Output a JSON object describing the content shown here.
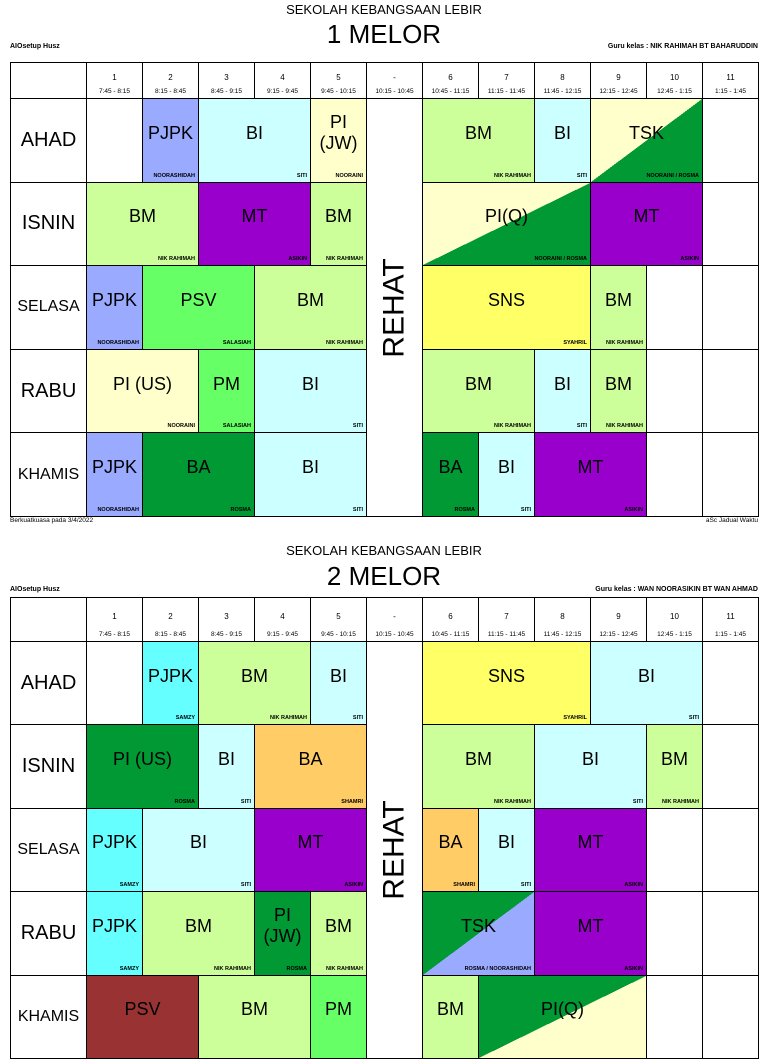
{
  "timetables": [
    {
      "school": "SEKOLAH KEBANGSAAN LEBIR",
      "class": "1 MELOR",
      "setup": "AIOsetup Husz",
      "teacher": "Guru kelas : NIK RAHIMAH BT BAHARUDDIN",
      "periods": [
        {
          "num": "1",
          "time": "7:45 - 8:15"
        },
        {
          "num": "2",
          "time": "8:15 - 8:45"
        },
        {
          "num": "3",
          "time": "8:45 - 9:15"
        },
        {
          "num": "4",
          "time": "9:15 - 9:45"
        },
        {
          "num": "5",
          "time": "9:45 - 10:15"
        },
        {
          "num": "-",
          "time": "10:15 - 10:45"
        },
        {
          "num": "6",
          "time": "10:45 - 11:15"
        },
        {
          "num": "7",
          "time": "11:15 - 11:45"
        },
        {
          "num": "8",
          "time": "11:45 - 12:15"
        },
        {
          "num": "9",
          "time": "12:15 - 12:45"
        },
        {
          "num": "10",
          "time": "12:45 - 1:15"
        },
        {
          "num": "11",
          "time": "1:15 - 1:45"
        }
      ],
      "rehat": "REHAT",
      "days": [
        {
          "name": "AHAD",
          "cells": [
            {
              "subject": "PJPK",
              "teacher": "NOORASHIDAH",
              "col": 1,
              "span": 1,
              "color": "#99aaff"
            },
            {
              "subject": "BI",
              "teacher": "SITI",
              "col": 2,
              "span": 2,
              "color": "#ccffff"
            },
            {
              "subject": "PI (JW)",
              "teacher": "NOORAINI",
              "col": 4,
              "span": 1,
              "color": "#ffffcc"
            },
            {
              "subject": "BM",
              "teacher": "NIK RAHIMAH",
              "col": 6,
              "span": 2,
              "color": "#ccff99"
            },
            {
              "subject": "BI",
              "teacher": "SITI",
              "col": 8,
              "span": 1,
              "color": "#ccffff"
            },
            {
              "subject": "TSK",
              "teacher": "NOORAINI / ROSMA",
              "col": 9,
              "span": 2,
              "color": "#ffffcc",
              "color2": "#009933"
            }
          ]
        },
        {
          "name": "ISNIN",
          "cells": [
            {
              "subject": "BM",
              "teacher": "NIK RAHIMAH",
              "col": 0,
              "span": 2,
              "color": "#ccff99"
            },
            {
              "subject": "MT",
              "teacher": "ASIKIN",
              "col": 2,
              "span": 2,
              "color": "#9900cc"
            },
            {
              "subject": "BM",
              "teacher": "NIK RAHIMAH",
              "col": 4,
              "span": 1,
              "color": "#ccff99"
            },
            {
              "subject": "PI(Q)",
              "teacher": "NOORAINI / ROSMA",
              "col": 6,
              "span": 3,
              "color": "#ffffcc",
              "color2": "#009933"
            },
            {
              "subject": "MT",
              "teacher": "ASIKIN",
              "col": 9,
              "span": 2,
              "color": "#9900cc"
            }
          ]
        },
        {
          "name": "SELASA",
          "cells": [
            {
              "subject": "PJPK",
              "teacher": "NOORASHIDAH",
              "col": 0,
              "span": 1,
              "color": "#99aaff"
            },
            {
              "subject": "PSV",
              "teacher": "SALASIAH",
              "col": 1,
              "span": 2,
              "color": "#66ff66"
            },
            {
              "subject": "BM",
              "teacher": "NIK RAHIMAH",
              "col": 3,
              "span": 2,
              "color": "#ccff99"
            },
            {
              "subject": "SNS",
              "teacher": "SYAHRIL",
              "col": 6,
              "span": 3,
              "color": "#ffff66"
            },
            {
              "subject": "BM",
              "teacher": "NIK RAHIMAH",
              "col": 9,
              "span": 1,
              "color": "#ccff99"
            }
          ]
        },
        {
          "name": "RABU",
          "cells": [
            {
              "subject": "PI (US)",
              "teacher": "NOORAINI",
              "col": 0,
              "span": 2,
              "color": "#ffffcc"
            },
            {
              "subject": "PM",
              "teacher": "SALASIAH",
              "col": 2,
              "span": 1,
              "color": "#66ff66"
            },
            {
              "subject": "BI",
              "teacher": "SITI",
              "col": 3,
              "span": 2,
              "color": "#ccffff"
            },
            {
              "subject": "BM",
              "teacher": "NIK RAHIMAH",
              "col": 6,
              "span": 2,
              "color": "#ccff99"
            },
            {
              "subject": "BI",
              "teacher": "SITI",
              "col": 8,
              "span": 1,
              "color": "#ccffff"
            },
            {
              "subject": "BM",
              "teacher": "NIK RAHIMAH",
              "col": 9,
              "span": 1,
              "color": "#ccff99"
            }
          ]
        },
        {
          "name": "KHAMIS",
          "cells": [
            {
              "subject": "PJPK",
              "teacher": "NOORASHIDAH",
              "col": 0,
              "span": 1,
              "color": "#99aaff"
            },
            {
              "subject": "BA",
              "teacher": "ROSMA",
              "col": 1,
              "span": 2,
              "color": "#009933"
            },
            {
              "subject": "BI",
              "teacher": "SITI",
              "col": 3,
              "span": 2,
              "color": "#ccffff"
            },
            {
              "subject": "BA",
              "teacher": "ROSMA",
              "col": 6,
              "span": 1,
              "color": "#009933"
            },
            {
              "subject": "BI",
              "teacher": "SITI",
              "col": 7,
              "span": 1,
              "color": "#ccffff"
            },
            {
              "subject": "MT",
              "teacher": "ASIKIN",
              "col": 8,
              "span": 2,
              "color": "#9900cc"
            }
          ]
        }
      ],
      "footer_left": "Berkuatkuasa pada 3/4/2022",
      "footer_right": "aSc Jadual Waktu"
    },
    {
      "school": "SEKOLAH KEBANGSAAN LEBIR",
      "class": "2 MELOR",
      "setup": "AIOsetup Husz",
      "teacher": "Guru kelas : WAN NOORASIKIN BT WAN AHMAD",
      "periods": [
        {
          "num": "1",
          "time": "7:45 - 8:15"
        },
        {
          "num": "2",
          "time": "8:15 - 8:45"
        },
        {
          "num": "3",
          "time": "8:45 - 9:15"
        },
        {
          "num": "4",
          "time": "9:15 - 9:45"
        },
        {
          "num": "5",
          "time": "9:45 - 10:15"
        },
        {
          "num": "-",
          "time": "10:15 - 10:45"
        },
        {
          "num": "6",
          "time": "10:45 - 11:15"
        },
        {
          "num": "7",
          "time": "11:15 - 11:45"
        },
        {
          "num": "8",
          "time": "11:45 - 12:15"
        },
        {
          "num": "9",
          "time": "12:15 - 12:45"
        },
        {
          "num": "10",
          "time": "12:45 - 1:15"
        },
        {
          "num": "11",
          "time": "1:15 - 1:45"
        }
      ],
      "rehat": "REHAT",
      "days": [
        {
          "name": "AHAD",
          "cells": [
            {
              "subject": "PJPK",
              "teacher": "SAMZY",
              "col": 1,
              "span": 1,
              "color": "#66ffff"
            },
            {
              "subject": "BM",
              "teacher": "NIK RAHIMAH",
              "col": 2,
              "span": 2,
              "color": "#ccff99"
            },
            {
              "subject": "BI",
              "teacher": "SITI",
              "col": 4,
              "span": 1,
              "color": "#ccffff"
            },
            {
              "subject": "SNS",
              "teacher": "SYAHRIL",
              "col": 6,
              "span": 3,
              "color": "#ffff66"
            },
            {
              "subject": "BI",
              "teacher": "SITI",
              "col": 9,
              "span": 2,
              "color": "#ccffff"
            }
          ]
        },
        {
          "name": "ISNIN",
          "cells": [
            {
              "subject": "PI (US)",
              "teacher": "ROSMA",
              "col": 0,
              "span": 2,
              "color": "#009933"
            },
            {
              "subject": "BI",
              "teacher": "SITI",
              "col": 2,
              "span": 1,
              "color": "#ccffff"
            },
            {
              "subject": "BA",
              "teacher": "SHAMRI",
              "col": 3,
              "span": 2,
              "color": "#ffcc66"
            },
            {
              "subject": "BM",
              "teacher": "NIK RAHIMAH",
              "col": 6,
              "span": 2,
              "color": "#ccff99"
            },
            {
              "subject": "BI",
              "teacher": "SITI",
              "col": 8,
              "span": 2,
              "color": "#ccffff"
            },
            {
              "subject": "BM",
              "teacher": "NIK RAHIMAH",
              "col": 10,
              "span": 1,
              "color": "#ccff99"
            }
          ]
        },
        {
          "name": "SELASA",
          "cells": [
            {
              "subject": "PJPK",
              "teacher": "SAMZY",
              "col": 0,
              "span": 1,
              "color": "#66ffff"
            },
            {
              "subject": "BI",
              "teacher": "SITI",
              "col": 1,
              "span": 2,
              "color": "#ccffff"
            },
            {
              "subject": "MT",
              "teacher": "ASIKIN",
              "col": 3,
              "span": 2,
              "color": "#9900cc"
            },
            {
              "subject": "BA",
              "teacher": "SHAMRI",
              "col": 6,
              "span": 1,
              "color": "#ffcc66"
            },
            {
              "subject": "BI",
              "teacher": "SITI",
              "col": 7,
              "span": 1,
              "color": "#ccffff"
            },
            {
              "subject": "MT",
              "teacher": "ASIKIN",
              "col": 8,
              "span": 2,
              "color": "#9900cc"
            }
          ]
        },
        {
          "name": "RABU",
          "cells": [
            {
              "subject": "PJPK",
              "teacher": "SAMZY",
              "col": 0,
              "span": 1,
              "color": "#66ffff"
            },
            {
              "subject": "BM",
              "teacher": "NIK RAHIMAH",
              "col": 1,
              "span": 2,
              "color": "#ccff99"
            },
            {
              "subject": "PI (JW)",
              "teacher": "ROSMA",
              "col": 3,
              "span": 1,
              "color": "#009933"
            },
            {
              "subject": "BM",
              "teacher": "NIK RAHIMAH",
              "col": 4,
              "span": 1,
              "color": "#ccff99"
            },
            {
              "subject": "TSK",
              "teacher": "ROSMA / NOORASHIDAH",
              "col": 6,
              "span": 2,
              "color": "#009933",
              "color2": "#99aaff"
            },
            {
              "subject": "MT",
              "teacher": "ASIKIN",
              "col": 8,
              "span": 2,
              "color": "#9900cc"
            }
          ]
        },
        {
          "name": "KHAMIS",
          "cells": [
            {
              "subject": "PSV",
              "col": 0,
              "span": 2,
              "color": "#993333"
            },
            {
              "subject": "BM",
              "col": 2,
              "span": 2,
              "color": "#ccff99"
            },
            {
              "subject": "PM",
              "col": 4,
              "span": 1,
              "color": "#66ff66"
            },
            {
              "subject": "BM",
              "col": 6,
              "span": 1,
              "color": "#ccff99"
            },
            {
              "subject": "PI(Q)",
              "col": 7,
              "span": 3,
              "color": "#009933",
              "color2": "#ffffcc"
            }
          ]
        }
      ]
    }
  ]
}
